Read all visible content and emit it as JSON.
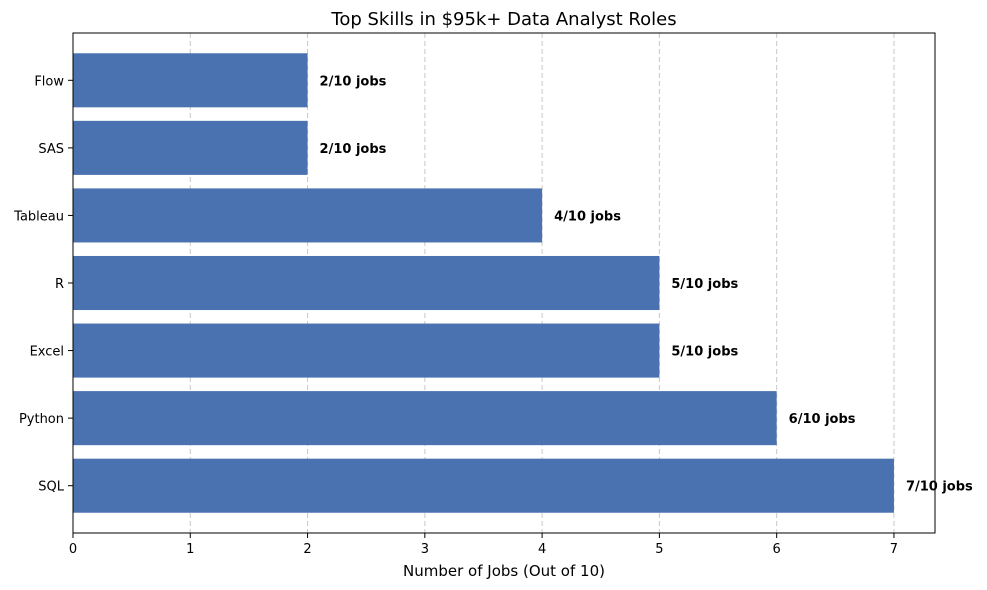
{
  "chart_data": {
    "type": "bar",
    "orientation": "horizontal",
    "title": "Top Skills in $95k+ Data Analyst Roles",
    "xlabel": "Number of Jobs (Out of 10)",
    "ylabel": "",
    "categories": [
      "SQL",
      "Python",
      "Excel",
      "R",
      "Tableau",
      "SAS",
      "Flow"
    ],
    "values": [
      7,
      6,
      5,
      5,
      4,
      2,
      2
    ],
    "data_labels": [
      "7/10 jobs",
      "6/10 jobs",
      "5/10 jobs",
      "5/10 jobs",
      "4/10 jobs",
      "2/10 jobs",
      "2/10 jobs"
    ],
    "xlim": [
      0,
      7.35
    ],
    "xticks": [
      "0",
      "1",
      "2",
      "3",
      "4",
      "5",
      "6",
      "7"
    ],
    "grid": "vertical dashed",
    "legend": "none",
    "colors": {
      "bar": "#4a72b0",
      "grid": "#c8c8c8",
      "axis": "#000000"
    }
  }
}
